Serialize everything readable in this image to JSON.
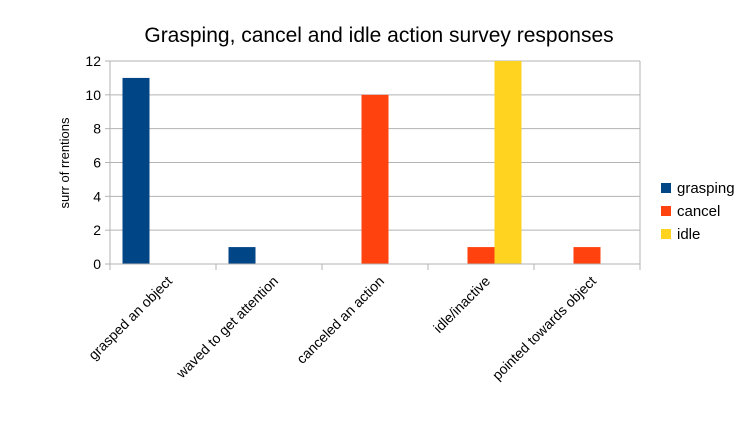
{
  "chart_data": {
    "type": "bar",
    "title": "Grasping, cancel and idle action survey responses",
    "xlabel": "",
    "ylabel": "surr of rrentions",
    "ylim": [
      0,
      12
    ],
    "yticks": [
      0,
      2,
      4,
      6,
      8,
      10,
      12
    ],
    "grid": true,
    "legend": "right",
    "categories": [
      "grasped an object",
      "waved to get attention",
      "canceled an action",
      "idle/inactive",
      "pointed towards object"
    ],
    "series": [
      {
        "name": "grasping",
        "color": "#004586",
        "values": [
          11,
          1,
          0,
          0,
          0
        ]
      },
      {
        "name": "cancel",
        "color": "#ff420e",
        "values": [
          0,
          0,
          10,
          1,
          1
        ]
      },
      {
        "name": "idle",
        "color": "#ffd320",
        "values": [
          0,
          0,
          0,
          12,
          0
        ]
      }
    ]
  }
}
